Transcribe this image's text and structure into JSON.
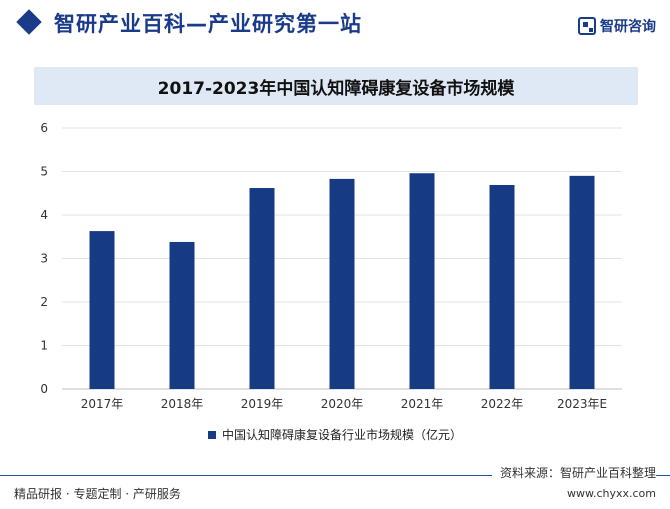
{
  "header": {
    "site_title": "智研产业百科—产业研究第一站",
    "brand_name": "智研咨询"
  },
  "chart_data": {
    "type": "bar",
    "title": "2017-2023年中国认知障碍康复设备市场规模",
    "categories": [
      "2017年",
      "2018年",
      "2019年",
      "2020年",
      "2021年",
      "2022年",
      "2023年E"
    ],
    "series": [
      {
        "name": "中国认知障碍康复设备行业市场规模（亿元）",
        "values": [
          3.63,
          3.38,
          4.62,
          4.83,
          4.96,
          4.69,
          4.9
        ]
      }
    ],
    "ylim": [
      0,
      6
    ],
    "yticks": [
      0,
      1,
      2,
      3,
      4,
      5,
      6
    ],
    "grid": true,
    "legend_position": "bottom",
    "bar_color": "#163a84"
  },
  "footer": {
    "source": "资料来源：智研产业百科整理",
    "left": "精品研报 · 专题定制 · 产研服务",
    "url": "www.chyxx.com"
  }
}
